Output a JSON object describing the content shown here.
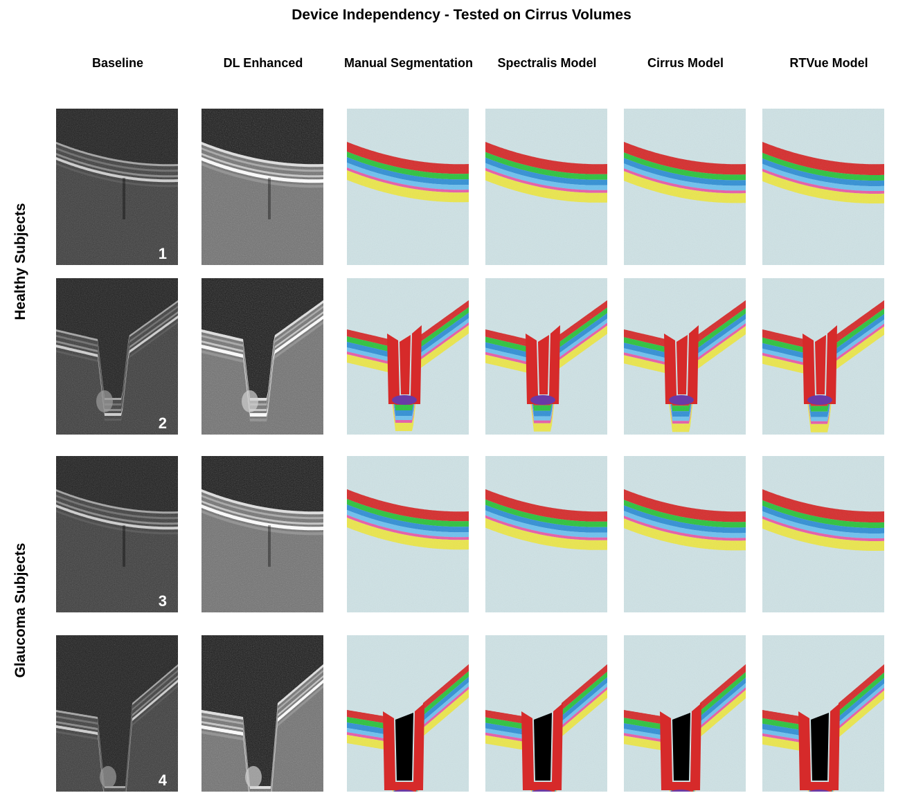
{
  "figure": {
    "title": "Device Independency - Tested on Cirrus Volumes",
    "columns": [
      "Baseline",
      "DL Enhanced",
      "Manual Segmentation",
      "Spectralis Model",
      "Cirrus Model",
      "RTVue Model"
    ],
    "row_groups": [
      "Healthy Subjects",
      "Glaucoma Subjects"
    ],
    "subjects": [
      {
        "number": "1",
        "group": "Healthy Subjects",
        "shape": "flat"
      },
      {
        "number": "2",
        "group": "Healthy Subjects",
        "shape": "cup"
      },
      {
        "number": "3",
        "group": "Glaucoma Subjects",
        "shape": "flat"
      },
      {
        "number": "4",
        "group": "Glaucoma Subjects",
        "shape": "deep-cup"
      }
    ],
    "layer_colors": {
      "background": "#000000",
      "rnfl": "#d62a2a",
      "gcl": "#2bc23b",
      "ipl": "#2f8fd6",
      "inl": "#6cc1f0",
      "opl": "#e85aa8",
      "onl": "#ece74a",
      "choroid": "#cfe3e6",
      "lamina": "#6a3aa6"
    }
  }
}
